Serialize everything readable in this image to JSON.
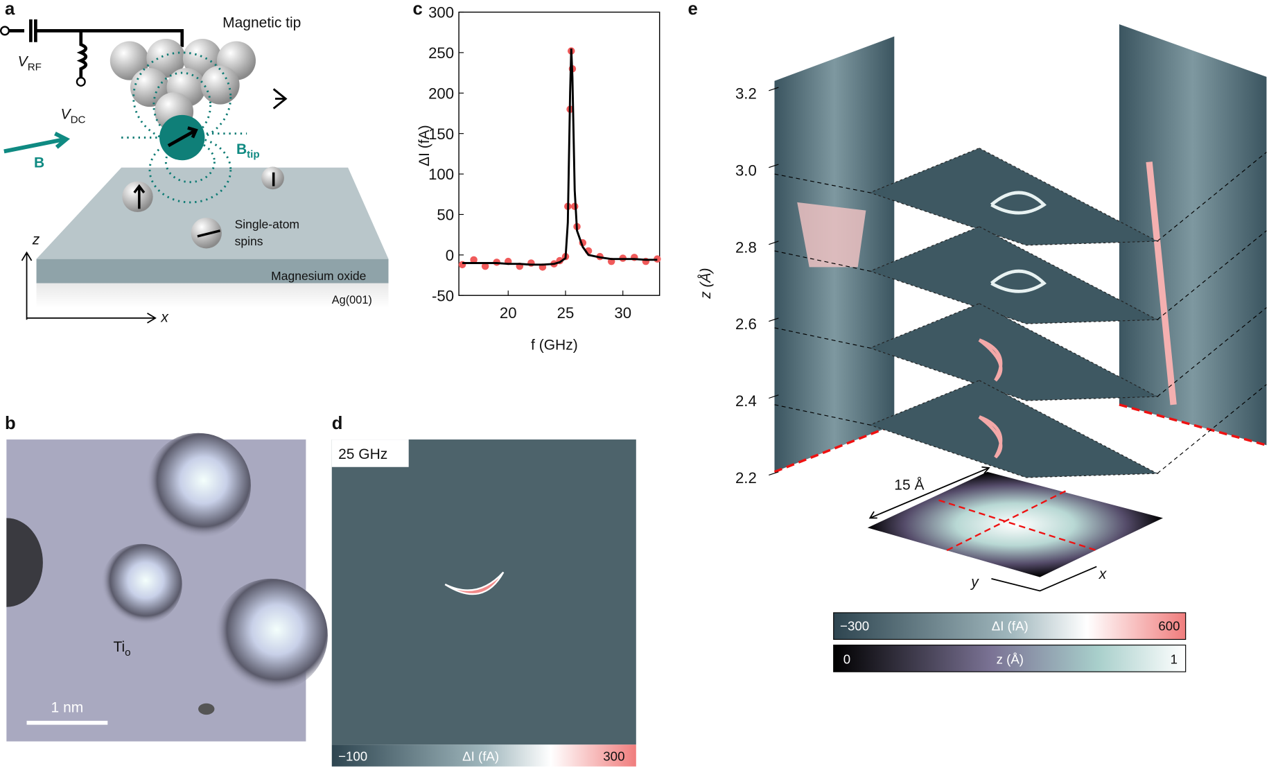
{
  "panel_labels": [
    "a",
    "b",
    "c",
    "d",
    "e"
  ],
  "a": {
    "tip": "Magnetic tip",
    "v_rf": {
      "symbol": "V",
      "subscript": "RF"
    },
    "v_dc": {
      "symbol": "V",
      "subscript": "DC"
    },
    "field": "B",
    "tip_field": {
      "symbol": "B",
      "subscript": "tip"
    },
    "spins": [
      "Single-atom",
      "spins"
    ],
    "oxide": "Magnesium oxide",
    "substrate": "Ag(001)",
    "axes": [
      "z",
      "x"
    ]
  },
  "b": {
    "atom": {
      "symbol": "Ti",
      "subscript": "o"
    },
    "scale_bar": "1 nm"
  },
  "chart_data": {
    "type": "scatter",
    "xlabel": "f (GHz)",
    "ylabel": "ΔI (fA)",
    "x": [
      16,
      17,
      18,
      19,
      20,
      21,
      22,
      23,
      24,
      24.5,
      25,
      25.2,
      25.4,
      25.5,
      25.6,
      25.8,
      26,
      26.5,
      27,
      28,
      29,
      30,
      31,
      32,
      33
    ],
    "series": [
      {
        "type": "scatter",
        "color": "#f05a5a",
        "values": [
          -12,
          -6,
          -14,
          -9,
          -8,
          -14,
          -10,
          -15,
          -11,
          -7,
          -2,
          60,
          180,
          252,
          230,
          60,
          35,
          15,
          5,
          -2,
          -8,
          -4,
          -3,
          -8,
          -5
        ]
      },
      {
        "type": "line",
        "color": "#000000",
        "values": [
          -10,
          -10,
          -10,
          -10,
          -11,
          -11,
          -12,
          -12,
          -11,
          -9,
          -4,
          40,
          200,
          255,
          220,
          80,
          30,
          10,
          0,
          -3,
          -5,
          -5,
          -5,
          -6,
          -6
        ]
      }
    ],
    "xlim": [
      15.7,
      33.2
    ],
    "xticks": [
      20,
      25,
      30
    ],
    "ylim": [
      -50,
      300
    ],
    "yticks": [
      -50,
      0,
      50,
      100,
      150,
      200,
      250,
      300
    ]
  },
  "d": {
    "frequency": "25 GHz",
    "colorbar": {
      "min": "−100",
      "label": "ΔI (fA)",
      "max": "300"
    }
  },
  "e": {
    "z_ticks": [
      "3.2",
      "3.0",
      "2.8",
      "2.6",
      "2.4",
      "2.2"
    ],
    "z_label": "z (Å)",
    "width": "15 Å",
    "axes": [
      "y",
      "x"
    ],
    "colorbars": [
      {
        "min": "−300",
        "label": "ΔI (fA)",
        "max": "600"
      },
      {
        "min": "0",
        "label": "z (Å)",
        "max": "1"
      }
    ]
  }
}
